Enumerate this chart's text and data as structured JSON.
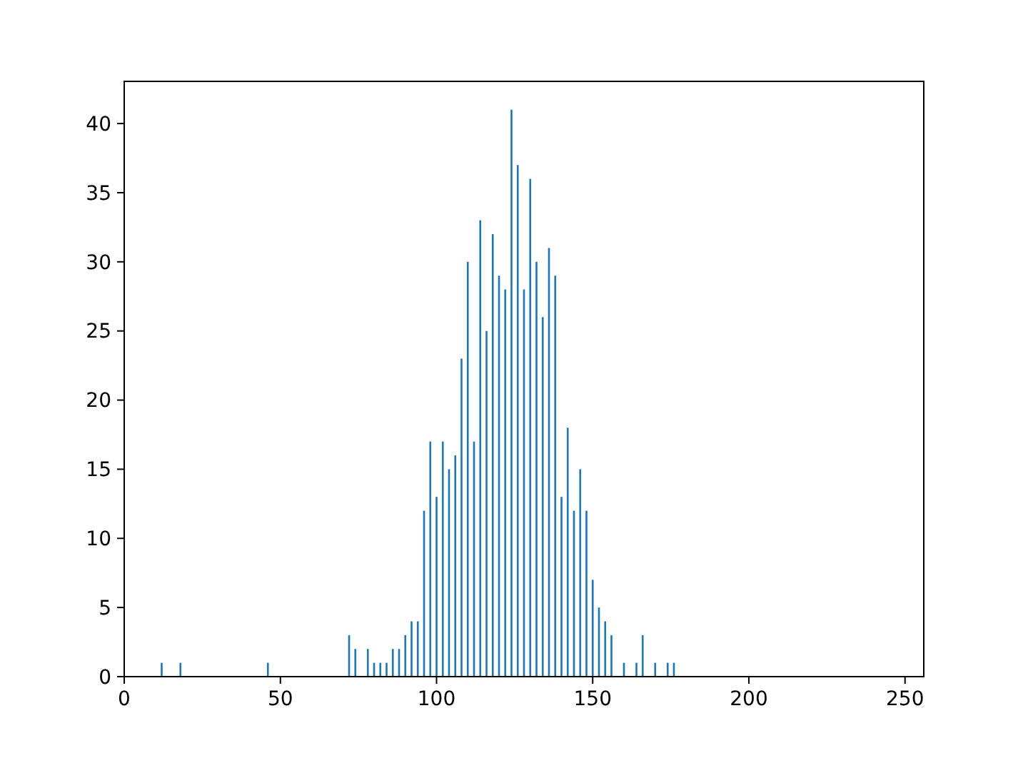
{
  "chart_data": {
    "type": "bar",
    "x": [
      12,
      18,
      46,
      72,
      74,
      78,
      80,
      82,
      84,
      86,
      88,
      90,
      92,
      94,
      96,
      98,
      100,
      102,
      104,
      106,
      108,
      110,
      112,
      114,
      116,
      118,
      120,
      122,
      124,
      126,
      128,
      130,
      132,
      134,
      136,
      138,
      140,
      142,
      144,
      146,
      148,
      150,
      152,
      154,
      156,
      160,
      164,
      166,
      170,
      174,
      176
    ],
    "values": [
      1,
      1,
      1,
      3,
      2,
      2,
      1,
      1,
      1,
      2,
      2,
      3,
      4,
      4,
      12,
      17,
      13,
      17,
      15,
      16,
      23,
      30,
      17,
      33,
      25,
      32,
      29,
      28,
      41,
      37,
      28,
      36,
      30,
      26,
      31,
      29,
      13,
      18,
      12,
      15,
      12,
      7,
      5,
      4,
      3,
      1,
      1,
      3,
      1,
      1,
      1
    ],
    "color": "#1f77b4",
    "xlim": [
      0,
      256
    ],
    "xticks": [
      0,
      50,
      100,
      150,
      200,
      250
    ],
    "ylim": [
      0,
      43.05
    ],
    "yticks": [
      0,
      5,
      10,
      15,
      20,
      25,
      30,
      35,
      40
    ],
    "grid": false
  }
}
